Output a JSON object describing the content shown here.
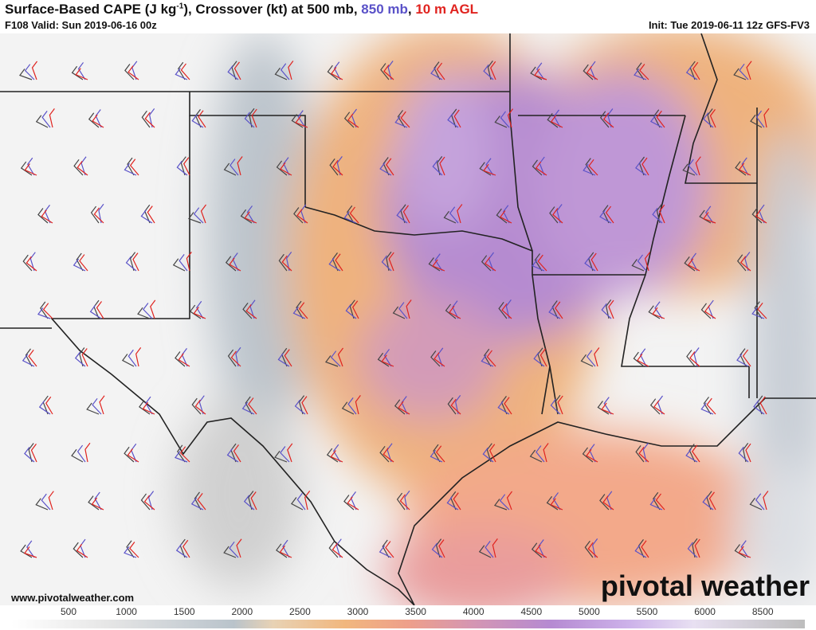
{
  "header": {
    "title_parts": [
      "Surface-Based CAPE (J kg",
      "-1",
      "), Crossover (kt) at 500 mb, ",
      "850 mb",
      ", ",
      "10 m AGL"
    ],
    "valid": "F108 Valid: Sun 2019-06-16 00z",
    "init": "Init: Tue 2019-06-11 12z GFS-FV3"
  },
  "footer": {
    "website": "www.pivotalweather.com",
    "logo": "pivotal weather"
  },
  "colorbar": {
    "labels": [
      500,
      1000,
      1500,
      2000,
      2500,
      3000,
      3500,
      4000,
      4500,
      5000,
      5500,
      6000,
      8500
    ]
  }
}
